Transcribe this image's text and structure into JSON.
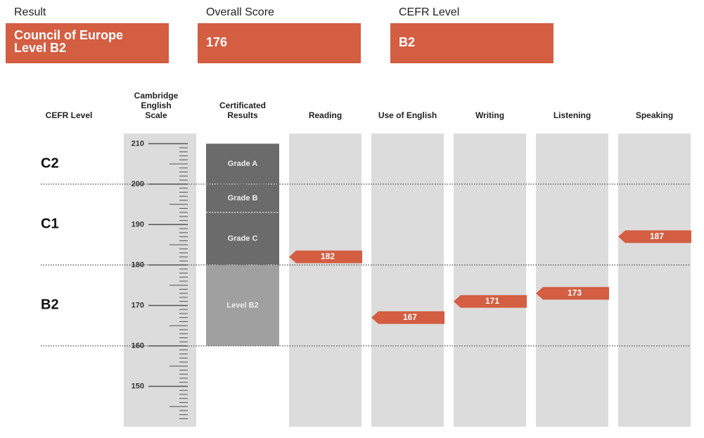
{
  "summary": [
    {
      "label": "Result",
      "value": [
        "Council of Europe",
        "Level B2"
      ]
    },
    {
      "label": "Overall Score",
      "value": 176
    },
    {
      "label": "CEFR Level",
      "value": "B2"
    }
  ],
  "summary_color": "#d35e42",
  "chart_data": {
    "type": "score-report",
    "cefr_header": "CEFR Level",
    "scale_header": [
      "Cambridge",
      "English",
      "Scale"
    ],
    "cert_header": [
      "Certificated",
      "Results"
    ],
    "ylim": [
      140,
      212.5
    ],
    "yticks": [
      150,
      160,
      170,
      180,
      190,
      200,
      210
    ],
    "cefr_levels": [
      {
        "label": "C2",
        "from": 200,
        "to": 210
      },
      {
        "label": "C1",
        "from": 180,
        "to": 200
      },
      {
        "label": "B2",
        "from": 160,
        "to": 180
      }
    ],
    "grades": [
      {
        "label": "Grade A",
        "from": 200,
        "to": 210,
        "color": "#6b6b6b"
      },
      {
        "label": "Grade B",
        "from": 193,
        "to": 200,
        "color": "#6b6b6b"
      },
      {
        "label": "Grade C",
        "from": 180,
        "to": 193,
        "color": "#6b6b6b"
      },
      {
        "label": "Level B2",
        "from": 160,
        "to": 180,
        "color": "#a0a0a0"
      }
    ],
    "categories": [
      "Reading",
      "Use of English",
      "Writing",
      "Listening",
      "Speaking"
    ],
    "values": [
      182,
      167,
      171,
      173,
      187
    ],
    "color": "#d35e42"
  }
}
